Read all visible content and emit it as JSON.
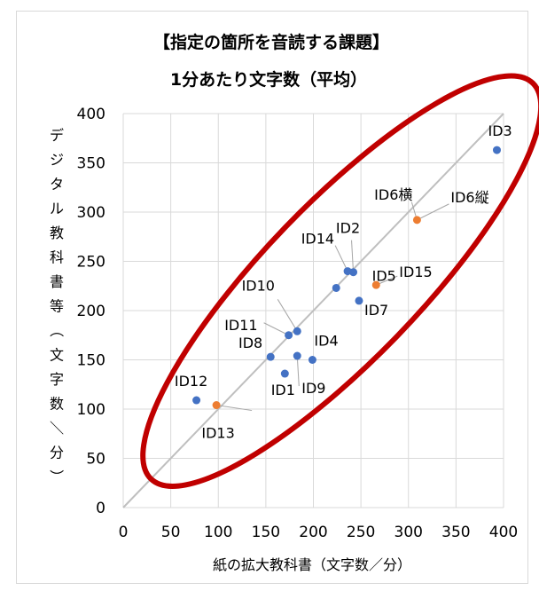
{
  "chart_data": {
    "type": "scatter",
    "title_line1": "【指定の箇所を音読する課題】",
    "title_line2": "1分あたり文字数（平均）",
    "xlabel": "紙の拡大教科書（文字数／分）",
    "ylabel": "デジタル教科書等（文字数／分）",
    "xlim": [
      0,
      400
    ],
    "ylim": [
      0,
      400
    ],
    "xticks": [
      "0",
      "50",
      "100",
      "150",
      "200",
      "250",
      "300",
      "350",
      "400"
    ],
    "yticks": [
      "0",
      "50",
      "100",
      "150",
      "200",
      "250",
      "300",
      "350",
      "400"
    ],
    "grid": "vertical-and-horizontal",
    "reference_line": {
      "from": [
        0,
        0
      ],
      "to": [
        400,
        400
      ],
      "color": "#bfbfbf"
    },
    "ellipse_color": "#c00000",
    "colors": {
      "blue": "#4472c4",
      "orange": "#ed7d31"
    },
    "points": [
      {
        "label": "ID3",
        "x": 393,
        "y": 363,
        "color": "blue"
      },
      {
        "label": "ID6縦",
        "x": 309,
        "y": 292,
        "color": "orange"
      },
      {
        "label": "ID6横",
        "x": 309,
        "y": 292,
        "color": "orange"
      },
      {
        "label": "ID2",
        "x": 242,
        "y": 239,
        "color": "blue"
      },
      {
        "label": "ID14",
        "x": 236,
        "y": 240,
        "color": "blue"
      },
      {
        "label": "ID5",
        "x": 224,
        "y": 223,
        "color": "blue"
      },
      {
        "label": "ID15",
        "x": 266,
        "y": 226,
        "color": "orange"
      },
      {
        "label": "ID7",
        "x": 248,
        "y": 210,
        "color": "blue"
      },
      {
        "label": "ID10",
        "x": 183,
        "y": 179,
        "color": "blue"
      },
      {
        "label": "ID11",
        "x": 174,
        "y": 175,
        "color": "blue"
      },
      {
        "label": "ID4",
        "x": 199,
        "y": 150,
        "color": "blue"
      },
      {
        "label": "ID8",
        "x": 155,
        "y": 153,
        "color": "blue"
      },
      {
        "label": "ID9",
        "x": 183,
        "y": 154,
        "color": "blue"
      },
      {
        "label": "ID1",
        "x": 170,
        "y": 136,
        "color": "blue"
      },
      {
        "label": "ID12",
        "x": 77,
        "y": 109,
        "color": "blue"
      },
      {
        "label": "ID13",
        "x": 98,
        "y": 104,
        "color": "orange"
      }
    ]
  }
}
